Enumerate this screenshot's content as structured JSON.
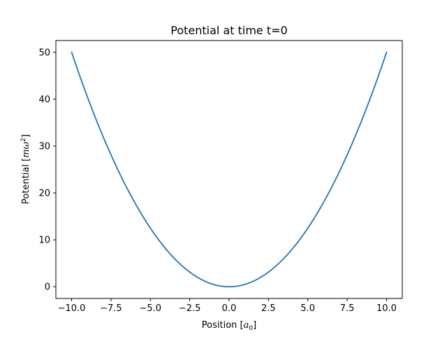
{
  "chart_data": {
    "type": "line",
    "title": "Potential at time t=0",
    "xlabel": {
      "prefix": "Position [",
      "symbol": "a",
      "subscript": "0",
      "suffix": "]"
    },
    "ylabel": {
      "prefix": "Potential [",
      "symbol": "mω",
      "superscript": "2",
      "suffix": "]"
    },
    "xlim": [
      -11,
      11
    ],
    "ylim": [
      -2.5,
      52.5
    ],
    "xticks": [
      -10,
      -7.5,
      -5,
      -2.5,
      0,
      2.5,
      5,
      7.5,
      10
    ],
    "xtick_labels": [
      "−10.0",
      "−7.5",
      "−5.0",
      "−2.5",
      "0.0",
      "2.5",
      "5.0",
      "7.5",
      "10.0"
    ],
    "yticks": [
      0,
      10,
      20,
      30,
      40,
      50
    ],
    "ytick_labels": [
      "0",
      "10",
      "20",
      "30",
      "40",
      "50"
    ],
    "grid": false,
    "series": [
      {
        "color": "#1f77b4",
        "x": [
          -10,
          -9,
          -8,
          -7,
          -6,
          -5,
          -4,
          -3,
          -2,
          -1,
          0,
          1,
          2,
          3,
          4,
          5,
          6,
          7,
          8,
          9,
          10
        ],
        "y": [
          50,
          40.5,
          32,
          24.5,
          18,
          12.5,
          8,
          4.5,
          2,
          0.5,
          0,
          0.5,
          2,
          4.5,
          8,
          12.5,
          18,
          24.5,
          32,
          40.5,
          50
        ]
      }
    ]
  }
}
